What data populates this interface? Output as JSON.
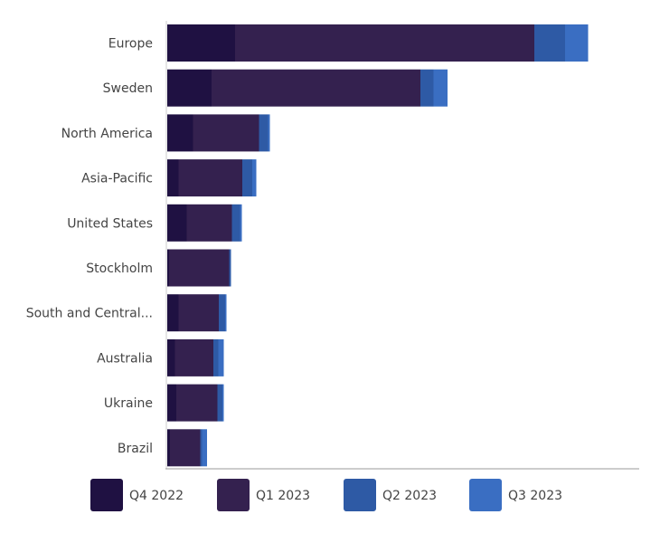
{
  "chart_data": {
    "type": "bar",
    "orientation": "horizontal",
    "stacked": true,
    "categories": [
      "Europe",
      "Sweden",
      "North America",
      "Asia-Pacific",
      "United States",
      "Stockholm",
      "South and Central...",
      "Australia",
      "Ukraine",
      "Brazil"
    ],
    "series": [
      {
        "name": "Q4 2022",
        "color": "#1f1142",
        "values": [
          150,
          98,
          57,
          25,
          43,
          4,
          25,
          17,
          20,
          6
        ]
      },
      {
        "name": "Q1 2023",
        "color": "#34214f",
        "values": [
          662,
          462,
          146,
          141,
          100,
          133,
          89,
          85,
          91,
          67
        ]
      },
      {
        "name": "Q2 2023",
        "color": "#2e5aa5",
        "values": [
          68,
          29,
          20,
          22,
          18,
          4,
          14,
          11,
          11,
          4
        ]
      },
      {
        "name": "Q3 2023",
        "color": "#3a6ec2",
        "values": [
          51,
          31,
          4,
          9,
          4,
          0,
          3,
          12,
          3,
          11
        ]
      }
    ],
    "title": "",
    "xlabel": "",
    "ylabel": "",
    "grid": false,
    "legend": "bottom"
  }
}
